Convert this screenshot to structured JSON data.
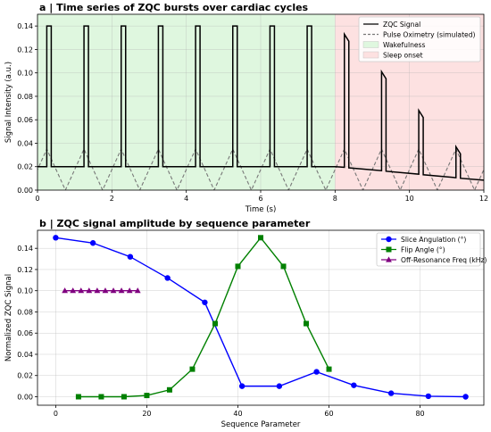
{
  "chart_data": [
    {
      "type": "line",
      "title": "a | Time series of ZQC bursts over cardiac cycles",
      "xlabel": "Time (s)",
      "ylabel": "Signal Intensity (a.u.)",
      "xlim": [
        0,
        12
      ],
      "ylim": [
        0,
        0.15
      ],
      "xticks": [
        0,
        2,
        4,
        6,
        8,
        10,
        12
      ],
      "yticks": [
        0.0,
        0.02,
        0.04,
        0.06,
        0.08,
        0.1,
        0.12,
        0.14
      ],
      "grid": true,
      "legend_position": "top-right",
      "regions": [
        {
          "name": "Wakefulness",
          "x_range": [
            0,
            8
          ],
          "color": "#dff7df"
        },
        {
          "name": "Sleep onset",
          "x_range": [
            8,
            12
          ],
          "color": "#fde1e1"
        }
      ],
      "series": [
        {
          "name": "ZQC Signal",
          "color": "#000000",
          "style": "solid",
          "pulse_period": 1.0,
          "pulse_width": 0.12,
          "baseline_wake": 0.02,
          "pulse_heights_wake": [
            0.14,
            0.14,
            0.14,
            0.14,
            0.14,
            0.14,
            0.14,
            0.14
          ],
          "pulse_starts_wake": [
            0.25,
            1.25,
            2.25,
            3.25,
            4.25,
            5.25,
            6.25,
            7.25
          ],
          "sleep_segments": [
            {
              "x_start": 8.0,
              "y_start": 0.02,
              "x_end": 8.25,
              "y_end": 0.0195
            },
            {
              "x_start": 8.37,
              "y_start": 0.127,
              "x_end": 9.25,
              "y_end": 0.0166
            },
            {
              "x_start": 9.37,
              "y_start": 0.096,
              "x_end": 10.25,
              "y_end": 0.0136
            },
            {
              "x_start": 10.37,
              "y_start": 0.065,
              "x_end": 11.25,
              "y_end": 0.0106
            },
            {
              "x_start": 11.37,
              "y_start": 0.034,
              "x_end": 12.0,
              "y_end": 0.0085
            }
          ],
          "sleep_peaks": [
            {
              "x": 8.25,
              "y": 0.133
            },
            {
              "x": 9.25,
              "y": 0.101
            },
            {
              "x": 10.25,
              "y": 0.068
            },
            {
              "x": 11.25,
              "y": 0.037
            }
          ]
        },
        {
          "name": "Pulse Oximetry (simulated)",
          "color": "#777777",
          "style": "dashed",
          "period": 1.0,
          "peak_offset": 0.25,
          "amplitude": 0.035,
          "min": 0.0
        }
      ]
    },
    {
      "type": "line",
      "title": "b | ZQC signal amplitude by sequence parameter",
      "xlabel": "Sequence Parameter",
      "ylabel": "Normalized ZQC Signal",
      "xlim": [
        -4,
        94
      ],
      "ylim": [
        -0.008,
        0.157
      ],
      "xticks": [
        0,
        20,
        40,
        60,
        80
      ],
      "yticks": [
        0.0,
        0.02,
        0.04,
        0.06,
        0.08,
        0.1,
        0.12,
        0.14
      ],
      "grid": true,
      "legend_position": "top-right",
      "series": [
        {
          "name": "Slice Angulation (°)",
          "color": "#0000ff",
          "marker": "circle",
          "x": [
            0,
            8.18,
            16.36,
            24.55,
            32.73,
            40.91,
            49.09,
            57.27,
            65.45,
            73.64,
            81.82,
            90
          ],
          "y": [
            0.15,
            0.145,
            0.132,
            0.112,
            0.089,
            0.01,
            0.01,
            0.0235,
            0.0108,
            0.0033,
            0.0005,
            0.0
          ]
        },
        {
          "name": "Flip Angle (°)",
          "color": "#008000",
          "marker": "square",
          "x": [
            5,
            10,
            15,
            20,
            25,
            30,
            35,
            40,
            45,
            50,
            55,
            60
          ],
          "y": [
            0.0,
            0.0,
            0.0,
            0.0012,
            0.0065,
            0.026,
            0.069,
            0.123,
            0.15,
            0.123,
            0.069,
            0.026
          ]
        },
        {
          "name": "Off-Resonance Freq (kHz)",
          "color": "#800080",
          "marker": "triangle",
          "x": [
            2,
            3.78,
            5.56,
            7.33,
            9.11,
            10.89,
            12.67,
            14.44,
            16.22,
            18
          ],
          "y": [
            0.1,
            0.1,
            0.1,
            0.1,
            0.1,
            0.1,
            0.1,
            0.1,
            0.1,
            0.1
          ]
        }
      ]
    }
  ]
}
